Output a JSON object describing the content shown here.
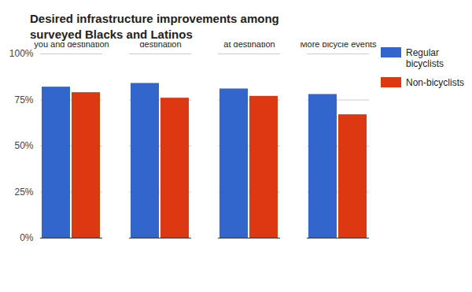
{
  "chart_data": {
    "type": "bar",
    "title": "Desired infrastructure improvements among surveyed Blacks and Latinos",
    "categories": [
      "Bicycle lane between you and destination",
      "Off-street bicycle path between you and destination",
      "Secure bicycle parking at destination",
      "More bicycle events"
    ],
    "series": [
      {
        "name": "Regular bicyclists",
        "color": "#3366cc",
        "values": [
          82,
          84,
          81,
          78
        ]
      },
      {
        "name": "Non-bicyclists",
        "color": "#dc3912",
        "values": [
          79,
          76,
          77,
          67
        ]
      }
    ],
    "ylim": [
      0,
      100
    ],
    "yticks": [
      {
        "value": 0,
        "label": "0%"
      },
      {
        "value": 25,
        "label": "25%"
      },
      {
        "value": 50,
        "label": "50%"
      },
      {
        "value": 75,
        "label": "75%"
      },
      {
        "value": 100,
        "label": "100%"
      }
    ],
    "grid": true,
    "legend": "right"
  }
}
